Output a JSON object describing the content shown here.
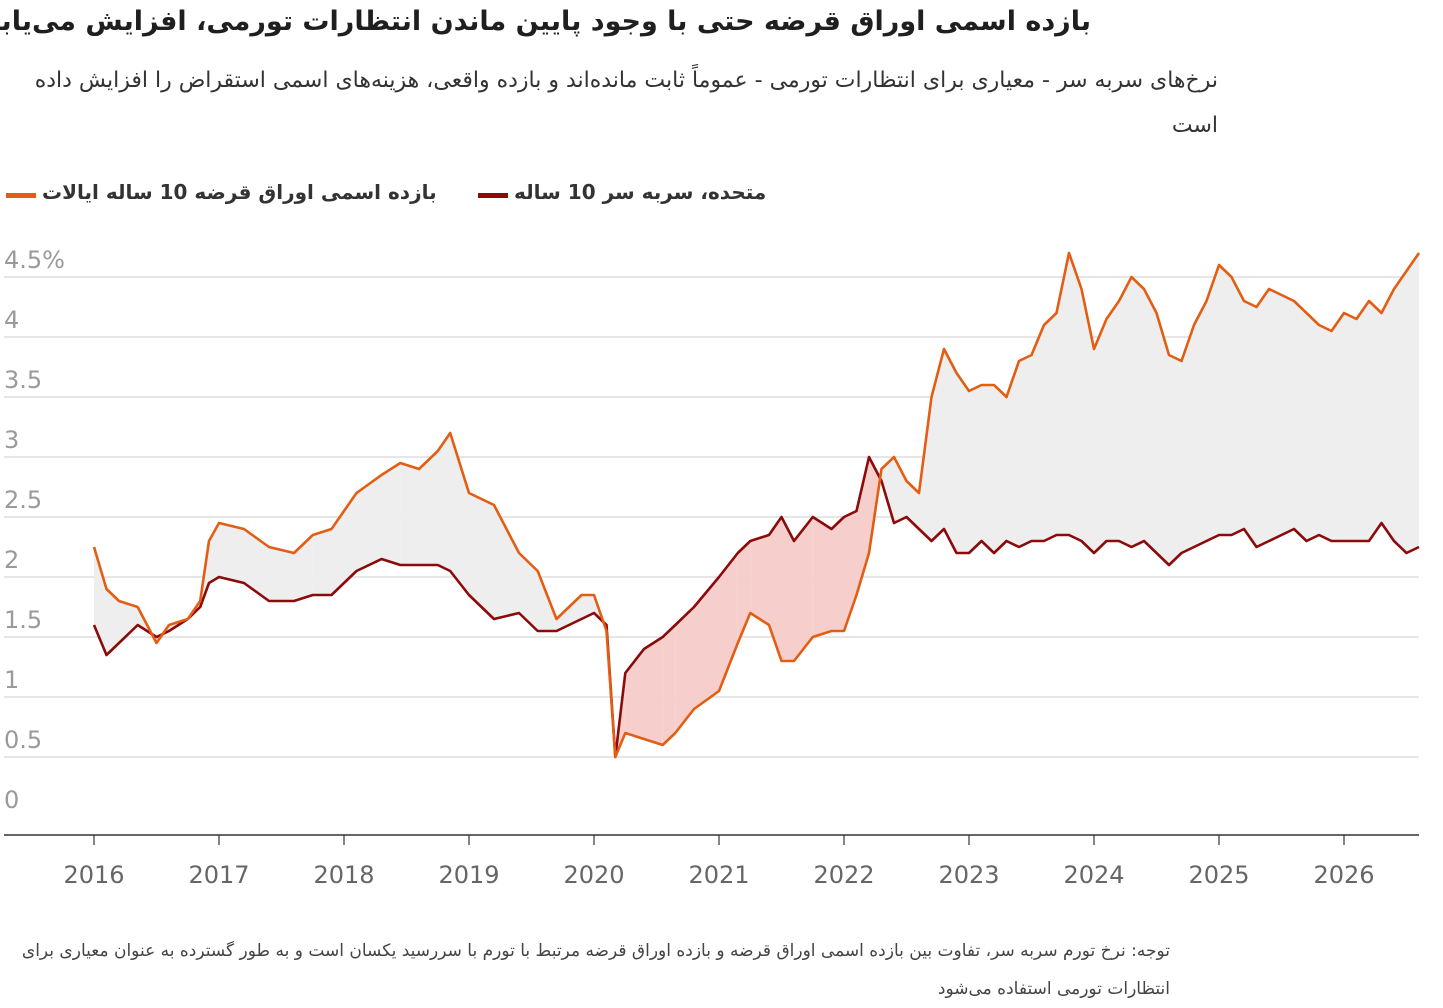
{
  "title": "بازده اسمی اوراق قرضه حتی با وجود پایین ماندن انتظارات تورمی، افزایش می‌یابد",
  "subtitle": "نرخ‌های سربه سر - معیاری برای انتظارات تورمی - عموماً ثابت مانده‌اند و بازده واقعی، هزینه‌های اسمی استقراض را افزایش داده است",
  "legend": {
    "nominal": "بازده اسمی اوراق قرضه 10 ساله ایالات",
    "breakeven": "متحده، سربه سر 10 ساله"
  },
  "note": "توجه: نرخ تورم سربه سر، تفاوت بین بازده اسمی اوراق قرضه و بازده اوراق قرضه مرتبط با تورم با سررسید یکسان است و به طور گسترده به عنوان معیاری برای انتظارات تورمی استفاده می‌شود",
  "colors": {
    "nominal": "#e35d12",
    "breakeven": "#8c0a0a",
    "fill_positive": "#eeeeee",
    "fill_negative": "#f6cfcc",
    "grid": "#cccccc",
    "axis": "#333333",
    "tick_text": "#9a9a9a"
  },
  "chart_data": {
    "type": "line",
    "ylim": [
      0,
      4.5
    ],
    "xlim": [
      2016,
      2026.6
    ],
    "y_ticks": [
      0,
      0.5,
      1,
      1.5,
      2,
      2.5,
      3,
      3.5,
      4,
      4.5
    ],
    "y_tick_labels": [
      "0",
      "0.5",
      "1",
      "1.5",
      "2",
      "2.5",
      "3",
      "3.5",
      "4",
      "4.5%"
    ],
    "x_ticks": [
      2016,
      2017,
      2018,
      2019,
      2020,
      2021,
      2022,
      2023,
      2024,
      2025,
      2026
    ],
    "x_tick_labels": [
      "2016",
      "2017",
      "2018",
      "2019",
      "2020",
      "2021",
      "2022",
      "2023",
      "2024",
      "2025",
      "2026"
    ],
    "area_between_series": true,
    "series": [
      {
        "name": "بازده اسمی اوراق قرضه 10 ساله ایالات",
        "x": [
          2016.0,
          2016.1,
          2016.2,
          2016.35,
          2016.5,
          2016.6,
          2016.75,
          2016.85,
          2016.92,
          2017.0,
          2017.2,
          2017.4,
          2017.6,
          2017.75,
          2017.9,
          2018.1,
          2018.3,
          2018.45,
          2018.6,
          2018.75,
          2018.85,
          2019.0,
          2019.2,
          2019.4,
          2019.55,
          2019.7,
          2019.9,
          2020.0,
          2020.1,
          2020.17,
          2020.25,
          2020.4,
          2020.55,
          2020.65,
          2020.8,
          2021.0,
          2021.15,
          2021.25,
          2021.4,
          2021.5,
          2021.6,
          2021.75,
          2021.9,
          2022.0,
          2022.1,
          2022.2,
          2022.3,
          2022.4,
          2022.5,
          2022.6,
          2022.7,
          2022.8,
          2022.9,
          2023.0,
          2023.1,
          2023.2,
          2023.3,
          2023.4,
          2023.5,
          2023.6,
          2023.7,
          2023.8,
          2023.9,
          2024.0,
          2024.1,
          2024.2,
          2024.3,
          2024.4,
          2024.5,
          2024.6,
          2024.7,
          2024.8,
          2024.9,
          2025.0,
          2025.1,
          2025.2,
          2025.3,
          2025.4,
          2025.5,
          2025.6,
          2025.7,
          2025.8,
          2025.9,
          2026.0,
          2026.1,
          2026.2,
          2026.3,
          2026.4,
          2026.5,
          2026.6
        ],
        "values": [
          2.25,
          1.9,
          1.8,
          1.75,
          1.45,
          1.6,
          1.65,
          1.8,
          2.3,
          2.45,
          2.4,
          2.25,
          2.2,
          2.35,
          2.4,
          2.7,
          2.85,
          2.95,
          2.9,
          3.05,
          3.2,
          2.7,
          2.6,
          2.2,
          2.05,
          1.65,
          1.85,
          1.85,
          1.55,
          0.5,
          0.7,
          0.65,
          0.6,
          0.7,
          0.9,
          1.05,
          1.45,
          1.7,
          1.6,
          1.3,
          1.3,
          1.5,
          1.55,
          1.55,
          1.85,
          2.2,
          2.9,
          3.0,
          2.8,
          2.7,
          3.5,
          3.9,
          3.7,
          3.55,
          3.6,
          3.6,
          3.5,
          3.8,
          3.85,
          4.1,
          4.2,
          4.7,
          4.4,
          3.9,
          4.15,
          4.3,
          4.5,
          4.4,
          4.2,
          3.85,
          3.8,
          4.1,
          4.3,
          4.6,
          4.5,
          4.3,
          4.25,
          4.4,
          4.35,
          4.3,
          4.2,
          4.1,
          4.05,
          4.2,
          4.15,
          4.3,
          4.2,
          4.4,
          4.55,
          4.7
        ]
      },
      {
        "name": "متحده، سربه سر 10 ساله",
        "x": [
          2016.0,
          2016.1,
          2016.2,
          2016.35,
          2016.5,
          2016.6,
          2016.75,
          2016.85,
          2016.92,
          2017.0,
          2017.2,
          2017.4,
          2017.6,
          2017.75,
          2017.9,
          2018.1,
          2018.3,
          2018.45,
          2018.6,
          2018.75,
          2018.85,
          2019.0,
          2019.2,
          2019.4,
          2019.55,
          2019.7,
          2019.9,
          2020.0,
          2020.1,
          2020.17,
          2020.25,
          2020.4,
          2020.55,
          2020.65,
          2020.8,
          2021.0,
          2021.15,
          2021.25,
          2021.4,
          2021.5,
          2021.6,
          2021.75,
          2021.9,
          2022.0,
          2022.1,
          2022.2,
          2022.3,
          2022.4,
          2022.5,
          2022.6,
          2022.7,
          2022.8,
          2022.9,
          2023.0,
          2023.1,
          2023.2,
          2023.3,
          2023.4,
          2023.5,
          2023.6,
          2023.7,
          2023.8,
          2023.9,
          2024.0,
          2024.1,
          2024.2,
          2024.3,
          2024.4,
          2024.5,
          2024.6,
          2024.7,
          2024.8,
          2024.9,
          2025.0,
          2025.1,
          2025.2,
          2025.3,
          2025.4,
          2025.5,
          2025.6,
          2025.7,
          2025.8,
          2025.9,
          2026.0,
          2026.1,
          2026.2,
          2026.3,
          2026.4,
          2026.5,
          2026.6
        ],
        "values": [
          1.6,
          1.35,
          1.45,
          1.6,
          1.5,
          1.55,
          1.65,
          1.75,
          1.95,
          2.0,
          1.95,
          1.8,
          1.8,
          1.85,
          1.85,
          2.05,
          2.15,
          2.1,
          2.1,
          2.1,
          2.05,
          1.85,
          1.65,
          1.7,
          1.55,
          1.55,
          1.65,
          1.7,
          1.6,
          0.5,
          1.2,
          1.4,
          1.5,
          1.6,
          1.75,
          2.0,
          2.2,
          2.3,
          2.35,
          2.5,
          2.3,
          2.5,
          2.4,
          2.5,
          2.55,
          3.0,
          2.8,
          2.45,
          2.5,
          2.4,
          2.3,
          2.4,
          2.2,
          2.2,
          2.3,
          2.2,
          2.3,
          2.25,
          2.3,
          2.3,
          2.35,
          2.35,
          2.3,
          2.2,
          2.3,
          2.3,
          2.25,
          2.3,
          2.2,
          2.1,
          2.2,
          2.25,
          2.3,
          2.35,
          2.35,
          2.4,
          2.25,
          2.3,
          2.35,
          2.4,
          2.3,
          2.35,
          2.3,
          2.3,
          2.3,
          2.3,
          2.45,
          2.3,
          2.2,
          2.25
        ]
      }
    ]
  }
}
